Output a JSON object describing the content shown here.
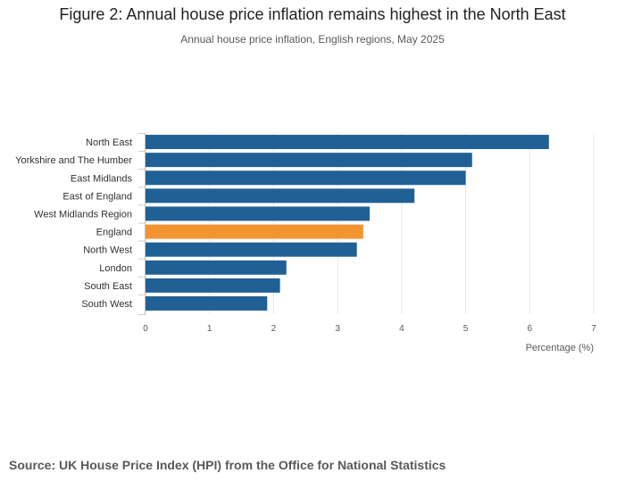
{
  "title": "Figure 2: Annual house price inflation remains highest in the North East",
  "subtitle": "Annual house price inflation, English regions, May 2025",
  "source": "Source: UK House Price Index (HPI) from the Office for National Statistics",
  "colors": {
    "bar": "#206095",
    "highlight": "#F39431",
    "grid": "#e6e6e6",
    "axis_text": "#595959"
  },
  "chart_data": {
    "type": "bar",
    "orientation": "horizontal",
    "categories": [
      "North East",
      "Yorkshire and The Humber",
      "East Midlands",
      "East of England",
      "West Midlands Region",
      "England",
      "North West",
      "London",
      "South East",
      "South West"
    ],
    "values": [
      6.3,
      5.1,
      5.0,
      4.2,
      3.5,
      3.4,
      3.3,
      2.2,
      2.1,
      1.9
    ],
    "highlight_category": "England",
    "xlabel": "Percentage (%)",
    "ylabel": "",
    "xlim": [
      0,
      7
    ],
    "xticks": [
      0,
      1,
      2,
      3,
      4,
      5,
      6,
      7
    ],
    "grid": true,
    "legend": "none"
  }
}
